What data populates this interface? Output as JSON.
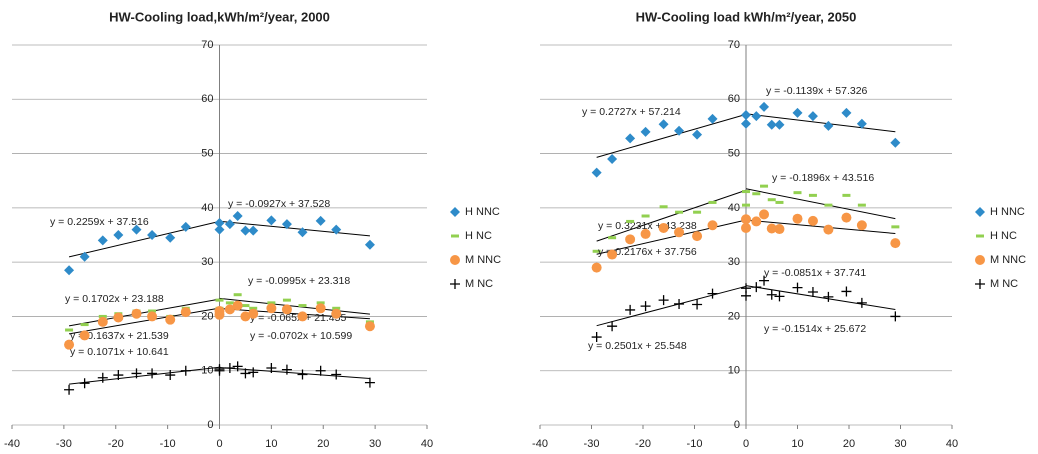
{
  "chart_data": [
    {
      "type": "scatter",
      "title": "HW-Cooling load,kWh/m²/year, 2000",
      "x": [
        -29,
        -26,
        -22.5,
        -19.5,
        -16,
        -13,
        -9.5,
        -6.5,
        0,
        0,
        2,
        3.5,
        5,
        6.5,
        10,
        13,
        16,
        19.5,
        22.5,
        29
      ],
      "xlim": [
        -40,
        40
      ],
      "xticks": [
        -40,
        -30,
        -20,
        -10,
        0,
        10,
        20,
        30,
        40
      ],
      "ylim": [
        0,
        70
      ],
      "yticks": [
        0,
        10,
        20,
        30,
        40,
        50,
        60,
        70
      ],
      "grid": true,
      "legend": "right",
      "series": [
        {
          "name": "H NNC",
          "color": "#2e8bc9",
          "marker": "diamond",
          "values": [
            28.5,
            31,
            34,
            35,
            36,
            35,
            34.5,
            36.5,
            36,
            37.2,
            37,
            38.5,
            35.8,
            35.8,
            37.7,
            37,
            35.5,
            37.6,
            36,
            33.2
          ],
          "trendlines": [
            {
              "label": "y = 0.2259x + 37.516",
              "slope": 0.2259,
              "intercept": 37.516,
              "x": [
                -29,
                0
              ]
            },
            {
              "label": "y = -0.0927x + 37.528",
              "slope": -0.0927,
              "intercept": 37.528,
              "x": [
                0,
                29
              ]
            }
          ]
        },
        {
          "name": "H NC",
          "color": "#92d050",
          "marker": "dash",
          "values": [
            17.5,
            18.5,
            20,
            20.5,
            21,
            21,
            20,
            21.5,
            21.5,
            23,
            22.5,
            24,
            22,
            21.5,
            22.5,
            23,
            22,
            22.5,
            21.5,
            19
          ],
          "trendlines": [
            {
              "label": "y = 0.1702x + 23.188",
              "slope": 0.1702,
              "intercept": 23.188,
              "x": [
                -29,
                0
              ]
            },
            {
              "label": "y = -0.0995x + 23.318",
              "slope": -0.0995,
              "intercept": 23.318,
              "x": [
                0,
                29
              ]
            }
          ]
        },
        {
          "name": "M NNC",
          "color": "#f79646",
          "marker": "circle",
          "values": [
            14.8,
            16.5,
            19,
            19.8,
            20.5,
            20,
            19.4,
            20.8,
            20.3,
            21,
            21.3,
            22,
            20,
            20.5,
            21.5,
            21.3,
            20,
            21.5,
            20.5,
            18.2
          ],
          "trendlines": [
            {
              "label": "y = 0.1637x + 21.539",
              "slope": 0.1637,
              "intercept": 21.539,
              "x": [
                -29,
                0
              ]
            },
            {
              "label": "y = -0.065x + 21.455",
              "slope": -0.065,
              "intercept": 21.455,
              "x": [
                0,
                29
              ]
            }
          ]
        },
        {
          "name": "M NC",
          "color": "#000000",
          "marker": "plus",
          "values": [
            6.5,
            7.7,
            8.7,
            9.2,
            9.5,
            9.5,
            9.2,
            10,
            10,
            10.3,
            10.5,
            10.8,
            9.5,
            9.7,
            10.5,
            10.2,
            9.3,
            10,
            9.3,
            7.8
          ],
          "trendlines": [
            {
              "label": "y = 0.1071x + 10.641",
              "slope": 0.1071,
              "intercept": 10.641,
              "x": [
                -29,
                0
              ]
            },
            {
              "label": "y = -0.0702x + 10.599",
              "slope": -0.0702,
              "intercept": 10.599,
              "x": [
                0,
                29
              ]
            }
          ]
        }
      ]
    },
    {
      "type": "scatter",
      "title": "HW-Cooling load kWh/m²/year, 2050",
      "x": [
        -29,
        -26,
        -22.5,
        -19.5,
        -16,
        -13,
        -9.5,
        -6.5,
        0,
        0,
        2,
        3.5,
        5,
        6.5,
        10,
        13,
        16,
        19.5,
        22.5,
        29
      ],
      "xlim": [
        -40,
        40
      ],
      "xticks": [
        -40,
        -30,
        -20,
        -10,
        0,
        10,
        20,
        30,
        40
      ],
      "ylim": [
        0,
        70
      ],
      "yticks": [
        0,
        10,
        20,
        30,
        40,
        50,
        60,
        70
      ],
      "grid": true,
      "legend": "right",
      "series": [
        {
          "name": "H NNC",
          "color": "#2e8bc9",
          "marker": "diamond",
          "values": [
            46.5,
            49,
            52.8,
            54,
            55.4,
            54.2,
            53.5,
            56.4,
            55.5,
            57.1,
            56.9,
            58.6,
            55.3,
            55.3,
            57.5,
            56.9,
            55.1,
            57.5,
            55.5,
            52
          ],
          "trendlines": [
            {
              "label": "y = 0.2727x + 57.214",
              "slope": 0.2727,
              "intercept": 57.214,
              "x": [
                -29,
                0
              ]
            },
            {
              "label": "y = -0.1139x + 57.326",
              "slope": -0.1139,
              "intercept": 57.326,
              "x": [
                0,
                29
              ]
            }
          ]
        },
        {
          "name": "H NC",
          "color": "#92d050",
          "marker": "dash",
          "values": [
            32,
            34.5,
            37.5,
            38.5,
            40.2,
            39.2,
            39.2,
            41,
            40.5,
            43,
            42.6,
            44,
            41.5,
            41,
            42.8,
            42.3,
            40.5,
            42.3,
            40.5,
            36.5
          ],
          "trendlines": [
            {
              "label": "y = 0.3231x + 43.238",
              "slope": 0.3231,
              "intercept": 43.238,
              "x": [
                -29,
                0
              ]
            },
            {
              "label": "y = -0.1896x + 43.516",
              "slope": -0.1896,
              "intercept": 43.516,
              "x": [
                0,
                29
              ]
            }
          ]
        },
        {
          "name": "M NNC",
          "color": "#f79646",
          "marker": "circle",
          "values": [
            29,
            31.4,
            34.2,
            35.2,
            36.3,
            35.5,
            34.8,
            36.8,
            36.3,
            37.9,
            37.5,
            38.8,
            36.2,
            36.1,
            38,
            37.6,
            36,
            38.2,
            36.8,
            33.5
          ],
          "trendlines": [
            {
              "label": "y = 0.2176x + 37.756",
              "slope": 0.2176,
              "intercept": 37.756,
              "x": [
                -29,
                0
              ]
            },
            {
              "label": "y = -0.0851x + 37.741",
              "slope": -0.0851,
              "intercept": 37.741,
              "x": [
                0,
                29
              ]
            }
          ]
        },
        {
          "name": "M NC",
          "color": "#000000",
          "marker": "plus",
          "values": [
            16.2,
            18.2,
            21.2,
            21.9,
            23,
            22.3,
            22.2,
            24.2,
            23.8,
            25.2,
            25.4,
            26.6,
            24,
            23.7,
            25.3,
            24.5,
            23.6,
            24.6,
            22.5,
            20
          ],
          "trendlines": [
            {
              "label": "y = 0.2501x + 25.548",
              "slope": 0.2501,
              "intercept": 25.548,
              "x": [
                -29,
                0
              ]
            },
            {
              "label": "y = -0.1514x + 25.672",
              "slope": -0.1514,
              "intercept": 25.672,
              "x": [
                0,
                29
              ]
            }
          ]
        }
      ]
    }
  ]
}
